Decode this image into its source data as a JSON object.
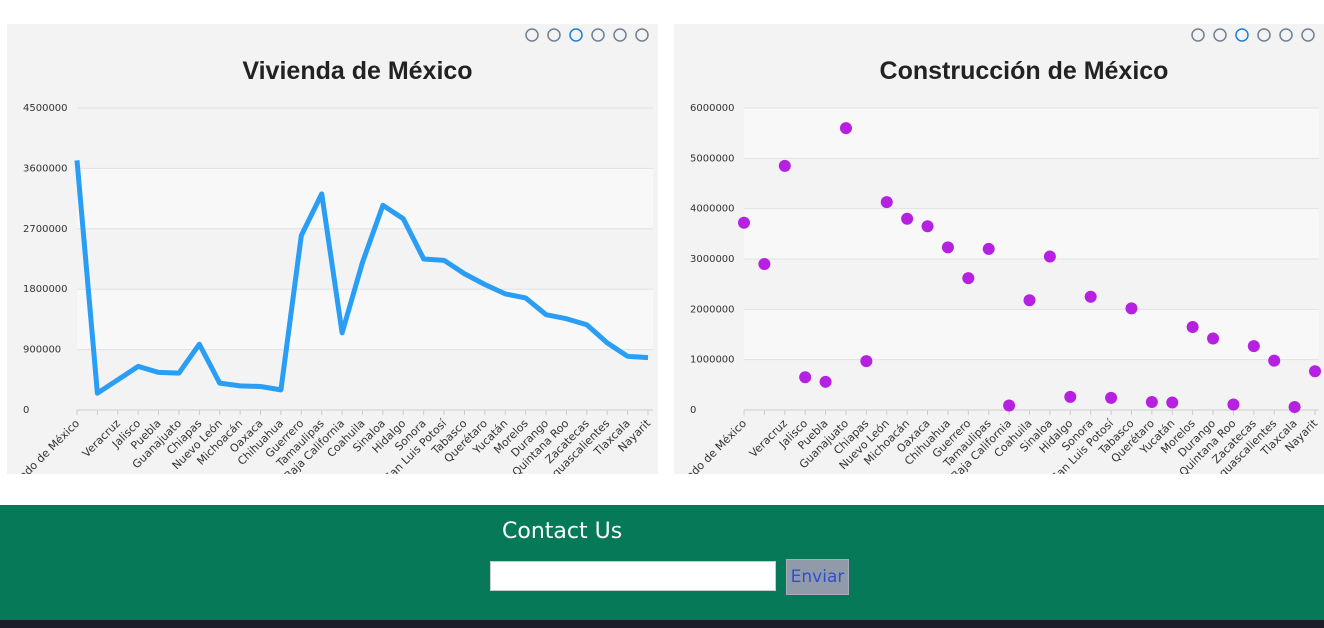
{
  "chart_data": [
    {
      "type": "line",
      "title": "Vivienda de México",
      "color": "#2a9df4",
      "categories": [
        "Estado de México",
        null,
        "Veracruz",
        "Jalisco",
        "Puebla",
        "Guanajuato",
        "Chiapas",
        "Nuevo León",
        "Michoacán",
        "Oaxaca",
        "Chihuahua",
        "Guerrero",
        "Tamaulipas",
        "Baja California",
        "Coahuila",
        "Sinaloa",
        "Hidalgo",
        "Sonora",
        "San Luis Potosí",
        "Tabasco",
        "Querétaro",
        "Yucatán",
        "Morelos",
        "Durango",
        "Quintana Roo",
        "Zacatecas",
        "Aguascalientes",
        "Tlaxcala",
        "Nayarit"
      ],
      "values": [
        3720000,
        250000,
        450000,
        650000,
        560000,
        550000,
        980000,
        400000,
        360000,
        350000,
        300000,
        2600000,
        3220000,
        1150000,
        2200000,
        3050000,
        2850000,
        2250000,
        2230000,
        2030000,
        1870000,
        1730000,
        1670000,
        1420000,
        1360000,
        1270000,
        1000000,
        800000,
        780000
      ],
      "ylim": [
        0,
        4500000
      ],
      "yticks": [
        0,
        900000,
        1800000,
        2700000,
        3600000,
        4500000
      ],
      "grid": true
    },
    {
      "type": "scatter",
      "title": "Construcción de México",
      "color": "#b620e0",
      "categories": [
        "Estado de México",
        null,
        "Veracruz",
        "Jalisco",
        "Puebla",
        "Guanajuato",
        "Chiapas",
        "Nuevo León",
        "Michoacán",
        "Oaxaca",
        "Chihuahua",
        "Guerrero",
        "Tamaulipas",
        "Baja California",
        "Coahuila",
        "Sinaloa",
        "Hidalgo",
        "Sonora",
        "San Luis Potosí",
        "Tabasco",
        "Querétaro",
        "Yucatán",
        "Morelos",
        "Durango",
        "Quintana Roo",
        "Zacatecas",
        "Aguascalientes",
        "Tlaxcala",
        "Nayarit"
      ],
      "values": [
        3720000,
        2900000,
        4850000,
        650000,
        560000,
        5600000,
        970000,
        4130000,
        3800000,
        3650000,
        3230000,
        2620000,
        3200000,
        90000,
        2180000,
        3050000,
        260000,
        2250000,
        240000,
        2020000,
        160000,
        150000,
        1650000,
        1420000,
        110000,
        1270000,
        980000,
        60000,
        770000
      ],
      "ylim": [
        0,
        6000000
      ],
      "yticks": [
        0,
        1000000,
        2000000,
        3000000,
        4000000,
        5000000,
        6000000
      ],
      "grid": true
    }
  ],
  "footer": {
    "title": "Contact Us",
    "button": "Enviar"
  }
}
